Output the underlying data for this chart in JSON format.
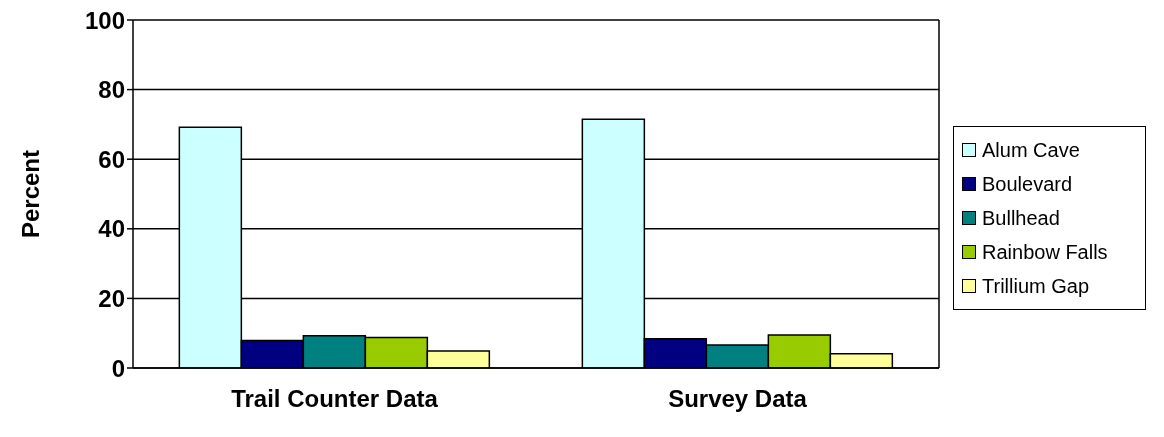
{
  "chart_data": {
    "type": "bar",
    "ylabel": "Percent",
    "categories": [
      "Trail Counter Data",
      "Survey Data"
    ],
    "series": [
      {
        "name": "Alum Cave",
        "color": "#ccffff",
        "values": [
          69.2,
          71.5
        ]
      },
      {
        "name": "Boulevard",
        "color": "#000080",
        "values": [
          7.9,
          8.4
        ]
      },
      {
        "name": "Bullhead",
        "color": "#008080",
        "values": [
          9.3,
          6.6
        ]
      },
      {
        "name": "Rainbow Falls",
        "color": "#99cc00",
        "values": [
          8.8,
          9.5
        ]
      },
      {
        "name": "Trillium Gap",
        "color": "#ffff99",
        "values": [
          4.9,
          4.1
        ]
      }
    ],
    "ylim": [
      0,
      100
    ],
    "yticks": [
      0,
      20,
      40,
      60,
      80,
      100
    ],
    "grid": "y",
    "legend": "right"
  }
}
